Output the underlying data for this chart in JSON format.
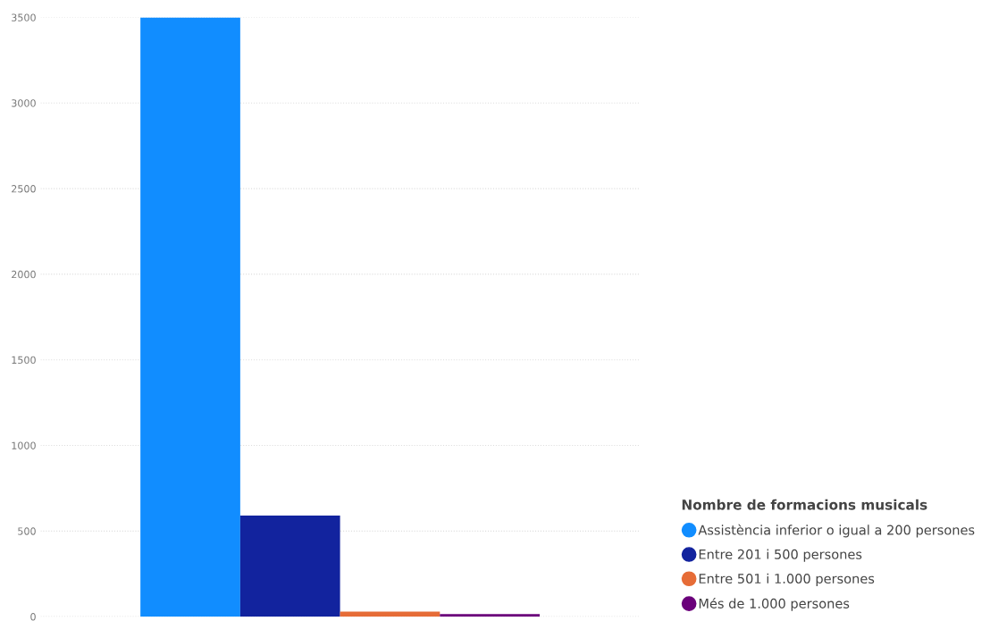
{
  "chart_data": {
    "type": "bar",
    "categories": [
      null
    ],
    "legend_title": "Nombre de formacions musicals",
    "legend": "bottom right",
    "grid": "y",
    "ylim": [
      0,
      3500
    ],
    "yticks": [
      0,
      500,
      1000,
      1500,
      2000,
      2500,
      3000,
      3500
    ],
    "marker": "circle",
    "series": [
      {
        "name": "Assistència inferior o igual a 200 persones",
        "color": "#118dff",
        "values": [
          3500
        ]
      },
      {
        "name": "Entre 201 i 500 persones",
        "color": "#12239e",
        "values": [
          590
        ]
      },
      {
        "name": "Entre 501 i 1.000 persones",
        "color": "#e66c37",
        "values": [
          30
        ]
      },
      {
        "name": "Més de 1.000 persones",
        "color": "#6b007b",
        "values": [
          15
        ]
      }
    ]
  }
}
